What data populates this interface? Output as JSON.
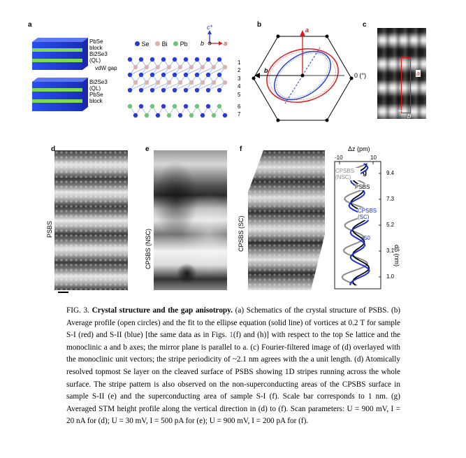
{
  "panel_labels": {
    "a": "a",
    "b": "b",
    "c": "c",
    "d": "d",
    "e": "e",
    "f": "f",
    "g": "g"
  },
  "panel_a": {
    "legend": {
      "se": "Se",
      "bi": "Bi",
      "pb": "Pb"
    },
    "axis_c": "c*",
    "axis_a": "a",
    "axis_b": "b",
    "block_labels": {
      "pbse_top": "PbSe",
      "block_top": "block",
      "bi2se3": "Bi2Se3",
      "ql": "(QL)",
      "vdw": "vdW gap",
      "bi2se3_2": "Bi2Se3",
      "ql_2": "(QL)",
      "pbse_bottom": "PbSe",
      "block_bottom": "block"
    },
    "layer_numbers": [
      "1",
      "2",
      "3",
      "4",
      "5",
      "6",
      "7"
    ],
    "colors": {
      "se": "#2a3bd6",
      "bi": "#d9b4ac",
      "pb": "#6fc56f",
      "slab_blue": "#1c3ee0",
      "slab_green": "#7ed957"
    }
  },
  "panel_b": {
    "axis_a": "a",
    "axis_b": "b",
    "angle_label": "0 (°)",
    "colors": {
      "red": "#e01818",
      "blue": "#2340d8"
    }
  },
  "panel_c": {
    "label_a": "a",
    "label_b": "b"
  },
  "panel_d": {
    "ylabel": "PSBS"
  },
  "panel_e": {
    "ylabel": "CPSBS (NSC)"
  },
  "panel_f": {
    "ylabel": "CPSBS (SC)"
  },
  "panel_g": {
    "xlabel": "Δz (pm)",
    "xticks": [
      "-10",
      "10"
    ],
    "ylabel": "dβ (nm)",
    "yticks": [
      "9.4",
      "7.3",
      "5.2",
      "3.1",
      "1.0"
    ],
    "labels": {
      "cpsbs_nsc": "CPSBS (NSC)",
      "psbs": "PSBS",
      "cpsbs_sc": "CPSBS (SC)",
      "x50": "x50"
    },
    "colors": {
      "nsc": "#8a8a8a",
      "psbs": "#000000",
      "sc": "#1d2fd8"
    }
  },
  "caption": {
    "fig": "FIG. 3.",
    "title": "Crystal structure and the gap anisotropy.",
    "text_1": "(a) Schematics of the crystal structure of PSBS. (b) Average profile (open circles) and the fit to the ellipse equation (solid line) of vortices at 0.2 T for sample S-I (red) and S-II (blue) [the same data as in Figs. ",
    "ref_1": "1",
    "text_2": "(f) and (h)] with respect to the top Se lattice and the monoclinic a and b axes; the mirror plane is parallel to a. (c) Fourier-filtered image of (d) overlayed with the monoclinic unit vectors; the stripe periodicity of ~2.1 nm agrees with the a unit length. (d) Atomically resolved topmost Se layer on the cleaved surface of PSBS showing 1D stripes running across the whole surface. The stripe pattern is also observed on the non-superconducting areas of the CPSBS surface in sample S-II (e) and the superconducting area of sample S-I (f). Scale bar corresponds to 1 nm. (g) Averaged STM height profile along the vertical direction in (d) to (f). Scan parameters: U = 900 mV, I = 20 nA for (d); U = 30 mV, I = 500 pA for (e); U = 900 mV, I = 200 pA for (f)."
  }
}
